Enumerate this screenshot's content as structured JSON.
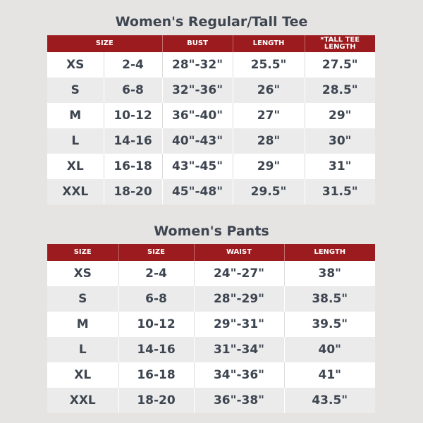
{
  "colors": {
    "header": "#9b1b1e",
    "text": "#3d4550",
    "row_alt": "#ebebeb",
    "background": "#e6e4e2"
  },
  "tee": {
    "title": "Women's Regular/Tall Tee",
    "headers": [
      "SIZE",
      "BUST",
      "LENGTH",
      "*TALL TEE LENGTH"
    ],
    "rows": [
      [
        "XS",
        "2-4",
        "28\"-32\"",
        "25.5\"",
        "27.5\""
      ],
      [
        "S",
        "6-8",
        "32\"-36\"",
        "26\"",
        "28.5\""
      ],
      [
        "M",
        "10-12",
        "36\"-40\"",
        "27\"",
        "29\""
      ],
      [
        "L",
        "14-16",
        "40\"-43\"",
        "28\"",
        "30\""
      ],
      [
        "XL",
        "16-18",
        "43\"-45\"",
        "29\"",
        "31\""
      ],
      [
        "XXL",
        "18-20",
        "45\"-48\"",
        "29.5\"",
        "31.5\""
      ]
    ]
  },
  "pants": {
    "title": "Women's Pants",
    "headers": [
      "SIZE",
      "SIZE",
      "WAIST",
      "LENGTH"
    ],
    "rows": [
      [
        "XS",
        "2-4",
        "24\"-27\"",
        "38\""
      ],
      [
        "S",
        "6-8",
        "28\"-29\"",
        "38.5\""
      ],
      [
        "M",
        "10-12",
        "29\"-31\"",
        "39.5\""
      ],
      [
        "L",
        "14-16",
        "31\"-34\"",
        "40\""
      ],
      [
        "XL",
        "16-18",
        "34\"-36\"",
        "41\""
      ],
      [
        "XXL",
        "18-20",
        "36\"-38\"",
        "43.5\""
      ]
    ]
  }
}
